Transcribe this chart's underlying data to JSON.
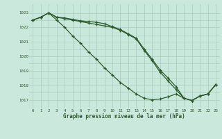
{
  "title": "Graphe pression niveau de la mer (hPa)",
  "background_color": "#cbe8dc",
  "plot_bg_color": "#c8e8dc",
  "grid_color": "#aaccbb",
  "line_color": "#2d5a2d",
  "marker_color": "#2d5a2d",
  "xmin": 0,
  "xmax": 23,
  "ymin": 1016.4,
  "ymax": 1023.6,
  "yticks": [
    1017,
    1018,
    1019,
    1020,
    1021,
    1022,
    1023
  ],
  "xticks": [
    0,
    1,
    2,
    3,
    4,
    5,
    6,
    7,
    8,
    9,
    10,
    11,
    12,
    13,
    14,
    15,
    16,
    17,
    18,
    19,
    20,
    21,
    22,
    23
  ],
  "series": [
    [
      1022.5,
      1022.7,
      1023.0,
      1022.7,
      1022.6,
      1022.5,
      1022.4,
      1022.3,
      1022.2,
      1022.1,
      1022.0,
      1021.8,
      1021.5,
      1021.2,
      1020.4,
      1019.7,
      1018.9,
      1018.3,
      1017.7,
      1017.1,
      1016.95,
      1017.25,
      1017.4,
      1018.05
    ],
    [
      1022.5,
      1022.7,
      1023.0,
      1022.7,
      1022.65,
      1022.55,
      1022.45,
      1022.4,
      1022.35,
      1022.25,
      1022.05,
      1021.85,
      1021.55,
      1021.25,
      1020.5,
      1019.8,
      1019.05,
      1018.5,
      1017.9,
      1017.1,
      1016.95,
      1017.25,
      1017.4,
      1018.05
    ],
    [
      1022.5,
      1022.7,
      1023.0,
      1022.5,
      1022.0,
      1021.4,
      1020.9,
      1020.3,
      1019.8,
      1019.2,
      1018.7,
      1018.2,
      1017.8,
      1017.4,
      1017.1,
      1017.0,
      1017.05,
      1017.2,
      1017.4,
      1017.1,
      1016.95,
      1017.25,
      1017.4,
      1018.05
    ]
  ]
}
